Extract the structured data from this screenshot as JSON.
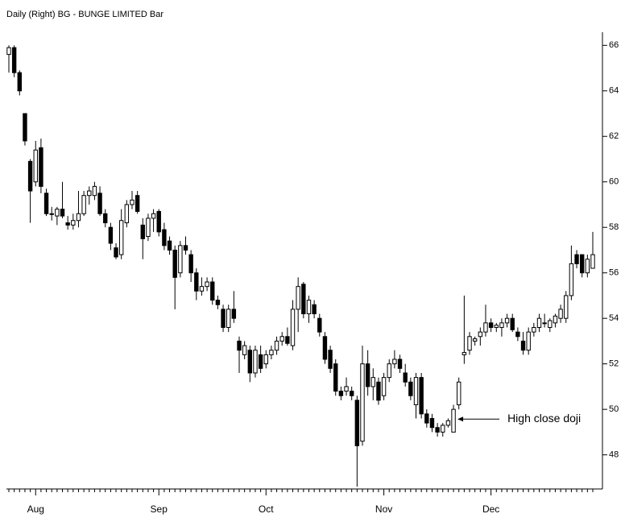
{
  "chart_data": {
    "type": "candlestick",
    "title": "Daily  (Right)  BG - BUNGE LIMITED  Bar",
    "annotation": "High close doji",
    "categories": [
      null,
      null,
      null,
      null,
      null,
      "Aug",
      null,
      null,
      null,
      null,
      null,
      null,
      null,
      null,
      null,
      null,
      null,
      null,
      null,
      null,
      null,
      null,
      null,
      null,
      null,
      null,
      null,
      null,
      "Sep",
      null,
      null,
      null,
      null,
      null,
      null,
      null,
      null,
      null,
      null,
      null,
      null,
      null,
      null,
      null,
      null,
      null,
      null,
      null,
      "Oct",
      null,
      null,
      null,
      null,
      null,
      null,
      null,
      null,
      null,
      null,
      null,
      null,
      null,
      null,
      null,
      null,
      null,
      null,
      null,
      null,
      null,
      "Nov",
      null,
      null,
      null,
      null,
      null,
      null,
      null,
      null,
      null,
      null,
      null,
      null,
      null,
      null,
      null,
      null,
      null,
      null,
      null,
      "Dec",
      null,
      null,
      null,
      null,
      null,
      null,
      null,
      null,
      null,
      null,
      null,
      null,
      null,
      null,
      null,
      null,
      null,
      null,
      null
    ],
    "open": [
      65.6,
      65.9,
      64.8,
      63.0,
      60.9,
      60.0,
      61.5,
      59.5,
      58.6,
      58.5,
      58.8,
      58.2,
      58.1,
      58.3,
      58.6,
      59.4,
      59.4,
      59.5,
      58.6,
      58.0,
      57.1,
      56.8,
      58.2,
      59.0,
      59.4,
      58.1,
      57.6,
      58.4,
      58.7,
      57.9,
      57.4,
      57.0,
      56.0,
      57.2,
      56.8,
      56.0,
      55.2,
      55.4,
      55.6,
      54.8,
      54.4,
      53.6,
      54.4,
      53.0,
      52.4,
      52.6,
      51.6,
      52.4,
      52.0,
      52.4,
      52.6,
      53.0,
      53.2,
      52.8,
      54.4,
      55.5,
      54.2,
      54.6,
      54.0,
      53.2,
      52.6,
      52.0,
      50.8,
      50.8,
      50.8,
      50.4,
      48.6,
      52.0,
      51.0,
      51.2,
      50.6,
      51.4,
      52.0,
      52.2,
      51.6,
      51.2,
      50.2,
      51.4,
      49.8,
      49.6,
      49.2,
      49.0,
      49.3,
      49.0,
      50.2,
      52.4,
      52.6,
      53.0,
      53.2,
      53.4,
      53.8,
      53.6,
      53.6,
      53.8,
      54.0,
      53.4,
      53.0,
      52.6,
      53.4,
      53.6,
      53.8,
      53.6,
      53.8,
      54.0,
      54.0,
      55.0,
      56.8,
      56.8,
      56.0,
      56.2
    ],
    "high": [
      66.0,
      66.0,
      64.9,
      63.0,
      61.0,
      61.8,
      61.9,
      59.7,
      58.9,
      58.9,
      60.0,
      58.5,
      58.6,
      59.6,
      59.6,
      59.8,
      60.0,
      59.8,
      58.8,
      58.2,
      57.3,
      58.8,
      59.2,
      59.6,
      59.6,
      58.4,
      58.6,
      58.8,
      58.8,
      58.2,
      57.6,
      57.2,
      57.4,
      57.6,
      57.0,
      56.2,
      55.8,
      55.8,
      55.8,
      55.0,
      54.6,
      54.6,
      55.2,
      53.2,
      53.0,
      52.8,
      52.8,
      52.8,
      52.6,
      52.8,
      53.2,
      53.4,
      53.6,
      54.8,
      55.8,
      55.6,
      55.0,
      54.8,
      54.2,
      53.4,
      52.8,
      52.2,
      51.0,
      51.4,
      51.0,
      50.6,
      52.8,
      52.6,
      51.8,
      51.4,
      51.6,
      52.2,
      52.6,
      52.4,
      52.0,
      51.4,
      51.6,
      51.6,
      50.0,
      49.8,
      49.4,
      49.4,
      49.6,
      50.2,
      51.4,
      55.0,
      53.4,
      53.2,
      53.6,
      54.6,
      54.0,
      53.8,
      54.0,
      54.2,
      54.2,
      53.6,
      53.4,
      53.6,
      53.8,
      54.2,
      54.2,
      54.0,
      54.2,
      54.6,
      55.2,
      57.2,
      57.0,
      56.8,
      56.8,
      57.8
    ],
    "low": [
      64.8,
      64.6,
      63.8,
      61.6,
      58.2,
      59.8,
      59.5,
      58.5,
      58.3,
      58.1,
      58.4,
      57.9,
      57.9,
      58.0,
      58.5,
      59.0,
      59.2,
      58.5,
      58.0,
      57.0,
      56.6,
      56.6,
      58.0,
      58.8,
      58.6,
      56.6,
      57.4,
      57.8,
      57.6,
      57.0,
      56.8,
      54.4,
      55.8,
      56.8,
      55.6,
      54.8,
      55.0,
      55.2,
      54.6,
      54.4,
      53.4,
      53.4,
      53.8,
      51.6,
      52.2,
      51.2,
      51.4,
      51.6,
      51.8,
      52.2,
      52.4,
      52.8,
      52.8,
      52.6,
      53.4,
      54.0,
      53.8,
      54.0,
      53.2,
      52.0,
      51.6,
      50.6,
      50.4,
      50.6,
      50.4,
      46.6,
      48.4,
      50.6,
      50.4,
      50.2,
      50.4,
      51.2,
      51.8,
      51.6,
      51.0,
      50.4,
      49.6,
      49.6,
      49.2,
      49.0,
      48.8,
      48.8,
      49.2,
      49.0,
      50.0,
      52.0,
      52.4,
      52.8,
      52.8,
      53.2,
      53.4,
      53.4,
      53.2,
      53.6,
      53.4,
      53.0,
      52.4,
      52.4,
      53.2,
      53.4,
      53.6,
      53.4,
      53.6,
      53.8,
      53.8,
      54.8,
      56.2,
      55.8,
      55.8,
      56.2
    ],
    "close": [
      65.9,
      64.8,
      64.0,
      61.8,
      59.6,
      61.4,
      59.8,
      58.6,
      58.6,
      58.8,
      58.5,
      58.1,
      58.3,
      58.6,
      59.4,
      59.6,
      59.8,
      58.6,
      58.2,
      57.3,
      56.7,
      58.3,
      59.0,
      59.2,
      58.7,
      57.5,
      58.4,
      58.6,
      57.8,
      57.2,
      57.0,
      55.8,
      57.2,
      57.0,
      56.0,
      55.2,
      55.4,
      55.6,
      54.8,
      54.6,
      53.6,
      54.4,
      54.0,
      52.6,
      52.8,
      51.6,
      52.6,
      51.8,
      52.4,
      52.6,
      53.0,
      53.2,
      52.9,
      54.4,
      55.4,
      54.2,
      54.8,
      54.2,
      53.4,
      52.2,
      51.8,
      50.8,
      50.6,
      51.0,
      50.6,
      48.4,
      52.0,
      51.0,
      51.4,
      50.4,
      51.4,
      52.0,
      52.2,
      51.8,
      51.2,
      50.6,
      51.4,
      49.8,
      49.4,
      49.2,
      49.0,
      49.3,
      49.5,
      50.0,
      51.2,
      52.5,
      53.2,
      53.1,
      53.4,
      53.8,
      53.6,
      53.7,
      53.8,
      54.0,
      53.5,
      53.2,
      52.6,
      53.4,
      53.6,
      54.0,
      53.8,
      53.9,
      54.1,
      54.4,
      55.0,
      56.4,
      56.4,
      56.0,
      56.6,
      56.8
    ],
    "up_color": "#ffffff",
    "down_color": "#000000",
    "ylim": [
      46.5,
      66.4
    ],
    "yticks": [
      48,
      50,
      52,
      54,
      56,
      58,
      60,
      62,
      64,
      66
    ]
  }
}
